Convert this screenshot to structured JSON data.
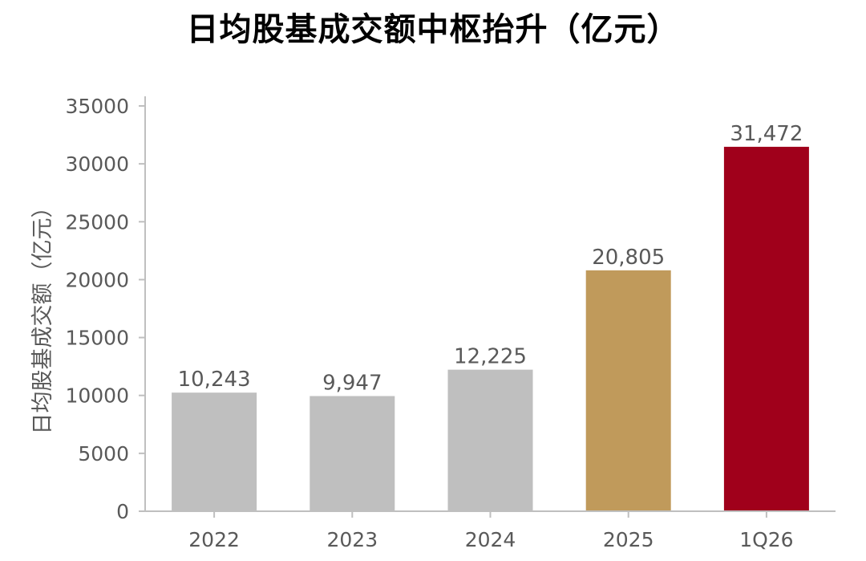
{
  "chart_data": {
    "type": "bar",
    "title": "日均股基成交额中枢抬升（亿元）",
    "xlabel": "",
    "ylabel": "日均股基成交额（亿元）",
    "categories": [
      "2022",
      "2023",
      "2024",
      "2025",
      "1Q26"
    ],
    "values": [
      10243,
      9947,
      12225,
      20805,
      31472
    ],
    "data_labels": [
      "10,243",
      "9,947",
      "12,225",
      "20,805",
      "31,472"
    ],
    "bar_colors": [
      "#bfbfbf",
      "#bfbfbf",
      "#bfbfbf",
      "#c09a5b",
      "#a0001b"
    ],
    "ylim": [
      0,
      35000
    ],
    "yticks": [
      0,
      5000,
      10000,
      15000,
      20000,
      25000,
      30000,
      35000
    ],
    "ytick_labels": [
      "0",
      "5000",
      "10000",
      "15000",
      "20000",
      "25000",
      "30000",
      "35000"
    ],
    "grid": false,
    "legend": "none"
  }
}
